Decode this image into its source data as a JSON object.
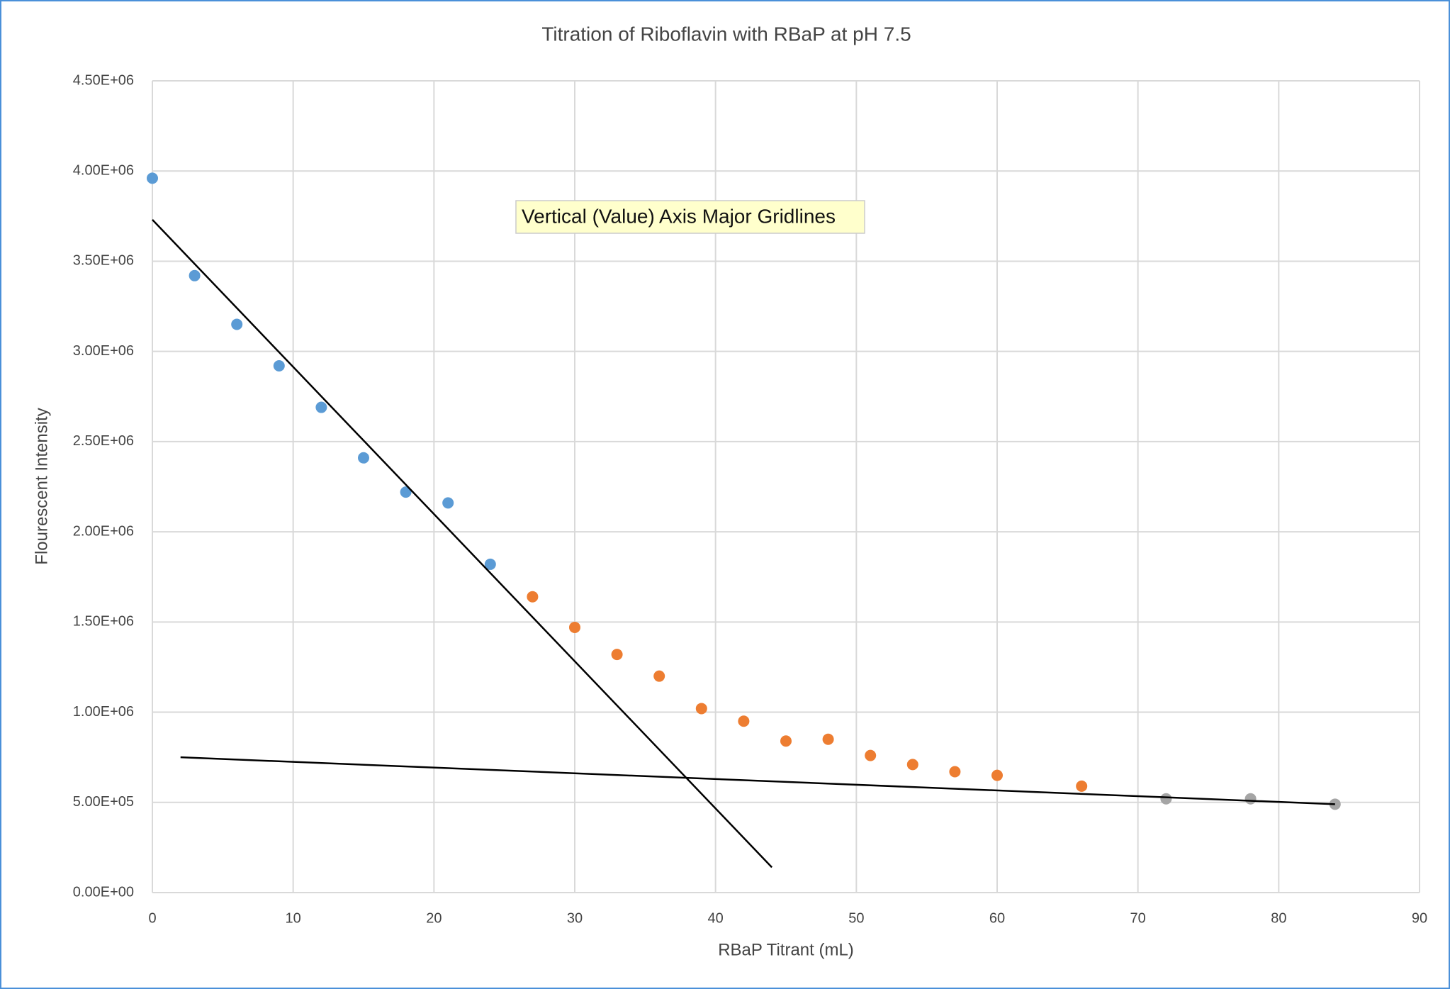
{
  "chart_data": {
    "type": "scatter",
    "title": "Titration of Riboflavin with RBaP at pH 7.5",
    "x_label": "RBaP Titrant (mL)",
    "y_label": "Flourescent Intensity",
    "annotation": "Vertical (Value) Axis Major Gridlines",
    "xlim": [
      0,
      90
    ],
    "xticks": [
      0,
      10,
      20,
      30,
      40,
      50,
      60,
      70,
      80,
      90
    ],
    "ylim": [
      0,
      4500000
    ],
    "yticks": [
      {
        "value": 0,
        "label": "0.00E+00"
      },
      {
        "value": 500000,
        "label": "5.00E+05"
      },
      {
        "value": 1000000,
        "label": "1.00E+06"
      },
      {
        "value": 1500000,
        "label": "1.50E+06"
      },
      {
        "value": 2000000,
        "label": "2.00E+06"
      },
      {
        "value": 2500000,
        "label": "2.50E+06"
      },
      {
        "value": 3000000,
        "label": "3.00E+06"
      },
      {
        "value": 3500000,
        "label": "3.50E+06"
      },
      {
        "value": 4000000,
        "label": "4.00E+06"
      },
      {
        "value": 4500000,
        "label": "4.50E+06"
      }
    ],
    "grid": true,
    "series": [
      {
        "color": "#5b9bd5",
        "x": [
          0,
          3,
          6,
          9,
          12,
          15,
          18,
          21,
          24
        ],
        "values": [
          3960000,
          3420000,
          3150000,
          2920000,
          2690000,
          2410000,
          2220000,
          2160000,
          1820000
        ]
      },
      {
        "color": "#ed7d31",
        "x": [
          27,
          30,
          33,
          36,
          39,
          42,
          45,
          48,
          51,
          54,
          57,
          60,
          66
        ],
        "values": [
          1640000,
          1470000,
          1320000,
          1200000,
          1020000,
          950000,
          840000,
          850000,
          760000,
          710000,
          670000,
          650000,
          590000
        ]
      },
      {
        "color": "#a5a5a5",
        "x": [
          72,
          78,
          84
        ],
        "values": [
          520000,
          520000,
          490000
        ]
      }
    ],
    "trendlines": [
      {
        "color": "#000000",
        "x": [
          0,
          44
        ],
        "values": [
          3730000,
          140000
        ]
      },
      {
        "color": "#000000",
        "x": [
          2,
          84
        ],
        "values": [
          750000,
          490000
        ]
      }
    ]
  }
}
